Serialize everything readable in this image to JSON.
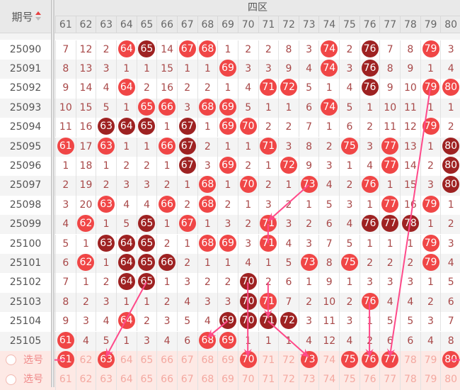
{
  "header": {
    "period_label": "期号",
    "zone_label": "四区",
    "sort_icon": "sort-up-down-icon"
  },
  "columns": [
    "61",
    "62",
    "63",
    "64",
    "65",
    "66",
    "67",
    "68",
    "69",
    "70",
    "71",
    "72",
    "73",
    "74",
    "75",
    "76",
    "77",
    "78",
    "79",
    "80"
  ],
  "colors": {
    "ball_red": "#f04646",
    "ball_dark": "#9e2222",
    "trend_line": "#ff4a8a",
    "select_row_bg": "#fde9e5"
  },
  "rows": [
    {
      "period": "25090",
      "cells": [
        "7",
        "12",
        "2",
        {
          "v": "64",
          "c": "red"
        },
        {
          "v": "65",
          "c": "dark"
        },
        "14",
        {
          "v": "67",
          "c": "red"
        },
        {
          "v": "68",
          "c": "red"
        },
        "1",
        "2",
        "2",
        "8",
        "3",
        {
          "v": "74",
          "c": "red"
        },
        "2",
        {
          "v": "76",
          "c": "dark"
        },
        "7",
        "8",
        {
          "v": "79",
          "c": "red"
        },
        "3"
      ]
    },
    {
      "period": "25091",
      "cells": [
        "8",
        "13",
        "3",
        "1",
        "1",
        "15",
        "1",
        "1",
        {
          "v": "69",
          "c": "red"
        },
        "3",
        "3",
        "9",
        "4",
        {
          "v": "74",
          "c": "red"
        },
        "3",
        {
          "v": "76",
          "c": "dark"
        },
        "8",
        "9",
        "1",
        "4"
      ]
    },
    {
      "period": "25092",
      "cells": [
        "9",
        "14",
        "4",
        {
          "v": "64",
          "c": "red"
        },
        "2",
        "16",
        "2",
        "2",
        "1",
        "4",
        {
          "v": "71",
          "c": "red"
        },
        {
          "v": "72",
          "c": "red"
        },
        "5",
        "1",
        "4",
        {
          "v": "76",
          "c": "dark"
        },
        "9",
        "10",
        {
          "v": "79",
          "c": "red"
        },
        {
          "v": "80",
          "c": "red"
        }
      ]
    },
    {
      "period": "25093",
      "cells": [
        "10",
        "15",
        "5",
        "1",
        {
          "v": "65",
          "c": "red"
        },
        {
          "v": "66",
          "c": "red"
        },
        "3",
        {
          "v": "68",
          "c": "red"
        },
        {
          "v": "69",
          "c": "red"
        },
        "5",
        "1",
        "1",
        "6",
        {
          "v": "74",
          "c": "red"
        },
        "5",
        "1",
        "10",
        "11",
        "1",
        "1"
      ]
    },
    {
      "period": "25094",
      "cells": [
        "11",
        "16",
        {
          "v": "63",
          "c": "dark"
        },
        {
          "v": "64",
          "c": "dark"
        },
        {
          "v": "65",
          "c": "dark"
        },
        "1",
        {
          "v": "67",
          "c": "dark"
        },
        "1",
        {
          "v": "69",
          "c": "red"
        },
        {
          "v": "70",
          "c": "red"
        },
        "2",
        "2",
        "7",
        "1",
        "6",
        "2",
        "11",
        "12",
        {
          "v": "79",
          "c": "red"
        },
        "2"
      ]
    },
    {
      "period": "25095",
      "cells": [
        {
          "v": "61",
          "c": "red"
        },
        "17",
        {
          "v": "63",
          "c": "red"
        },
        "1",
        "1",
        {
          "v": "66",
          "c": "red"
        },
        {
          "v": "67",
          "c": "dark"
        },
        "2",
        "1",
        "1",
        {
          "v": "71",
          "c": "red"
        },
        "3",
        "8",
        "2",
        {
          "v": "75",
          "c": "red"
        },
        "3",
        {
          "v": "77",
          "c": "red"
        },
        "13",
        "1",
        {
          "v": "80",
          "c": "dark"
        }
      ]
    },
    {
      "period": "25096",
      "cells": [
        "1",
        "18",
        "1",
        "2",
        "2",
        "1",
        {
          "v": "67",
          "c": "dark"
        },
        "3",
        {
          "v": "69",
          "c": "red"
        },
        "2",
        "1",
        {
          "v": "72",
          "c": "red"
        },
        "9",
        "3",
        "1",
        "4",
        {
          "v": "77",
          "c": "red"
        },
        "14",
        "2",
        {
          "v": "80",
          "c": "dark"
        }
      ]
    },
    {
      "period": "25097",
      "cells": [
        "2",
        "19",
        "2",
        "3",
        "3",
        "2",
        "1",
        {
          "v": "68",
          "c": "red"
        },
        "1",
        {
          "v": "70",
          "c": "red"
        },
        "2",
        "1",
        {
          "v": "73",
          "c": "red"
        },
        "4",
        "2",
        {
          "v": "76",
          "c": "red"
        },
        "1",
        "15",
        "3",
        {
          "v": "80",
          "c": "dark"
        }
      ]
    },
    {
      "period": "25098",
      "cells": [
        "3",
        "20",
        {
          "v": "63",
          "c": "red"
        },
        "4",
        "4",
        {
          "v": "66",
          "c": "red"
        },
        "2",
        {
          "v": "68",
          "c": "red"
        },
        "2",
        "1",
        "3",
        "2",
        "1",
        "5",
        "3",
        "1",
        {
          "v": "77",
          "c": "red"
        },
        "16",
        {
          "v": "79",
          "c": "red"
        },
        "1"
      ]
    },
    {
      "period": "25099",
      "cells": [
        "4",
        {
          "v": "62",
          "c": "red"
        },
        "1",
        "5",
        {
          "v": "65",
          "c": "dark"
        },
        "1",
        {
          "v": "67",
          "c": "red"
        },
        "1",
        "3",
        "2",
        {
          "v": "71",
          "c": "red"
        },
        "3",
        "2",
        "6",
        "4",
        {
          "v": "76",
          "c": "dark"
        },
        {
          "v": "77",
          "c": "dark"
        },
        {
          "v": "78",
          "c": "dark"
        },
        "1",
        "2"
      ]
    },
    {
      "period": "25100",
      "cells": [
        "5",
        "1",
        {
          "v": "63",
          "c": "dark"
        },
        {
          "v": "64",
          "c": "dark"
        },
        {
          "v": "65",
          "c": "dark"
        },
        "2",
        "1",
        {
          "v": "68",
          "c": "red"
        },
        {
          "v": "69",
          "c": "red"
        },
        "3",
        {
          "v": "71",
          "c": "red"
        },
        "4",
        "3",
        "7",
        "5",
        "1",
        "1",
        "1",
        {
          "v": "79",
          "c": "red"
        },
        "3"
      ]
    },
    {
      "period": "25101",
      "cells": [
        "6",
        {
          "v": "62",
          "c": "red"
        },
        "1",
        {
          "v": "64",
          "c": "dark"
        },
        {
          "v": "65",
          "c": "dark"
        },
        {
          "v": "66",
          "c": "dark"
        },
        "2",
        "1",
        "1",
        "4",
        "1",
        "5",
        {
          "v": "73",
          "c": "red"
        },
        "8",
        {
          "v": "75",
          "c": "red"
        },
        "2",
        "2",
        "2",
        {
          "v": "79",
          "c": "red"
        },
        "4"
      ]
    },
    {
      "period": "25102",
      "cells": [
        "7",
        "1",
        "2",
        {
          "v": "64",
          "c": "dark"
        },
        {
          "v": "65",
          "c": "dark"
        },
        "1",
        "3",
        "2",
        "2",
        {
          "v": "70",
          "c": "dark"
        },
        "2",
        "6",
        "1",
        "9",
        "1",
        "3",
        "3",
        "3",
        "1",
        "5"
      ]
    },
    {
      "period": "25103",
      "cells": [
        "8",
        "2",
        "3",
        "1",
        "1",
        "2",
        "4",
        "3",
        "3",
        {
          "v": "70",
          "c": "dark"
        },
        {
          "v": "71",
          "c": "red"
        },
        "7",
        "2",
        "10",
        "2",
        {
          "v": "76",
          "c": "red"
        },
        "4",
        "4",
        "2",
        "6"
      ]
    },
    {
      "period": "25104",
      "cells": [
        "9",
        "3",
        "4",
        {
          "v": "64",
          "c": "red"
        },
        "2",
        "3",
        "5",
        "4",
        {
          "v": "69",
          "c": "dark"
        },
        {
          "v": "70",
          "c": "dark"
        },
        {
          "v": "71",
          "c": "dark"
        },
        {
          "v": "72",
          "c": "dark"
        },
        "3",
        "11",
        "3",
        "1",
        "5",
        "5",
        "3",
        "7"
      ]
    },
    {
      "period": "25105",
      "cells": [
        {
          "v": "61",
          "c": "red"
        },
        "4",
        "5",
        "1",
        "3",
        "4",
        "6",
        {
          "v": "68",
          "c": "red"
        },
        {
          "v": "69",
          "c": "red"
        },
        "1",
        "1",
        "1",
        "4",
        "12",
        "4",
        "2",
        "6",
        "6",
        "4",
        "8"
      ]
    }
  ],
  "select_rows": [
    {
      "label": "选号",
      "selected": [
        "61",
        "63",
        "70",
        "73",
        "75",
        "76",
        "77",
        "80"
      ]
    },
    {
      "label": "选号",
      "selected": []
    }
  ]
}
